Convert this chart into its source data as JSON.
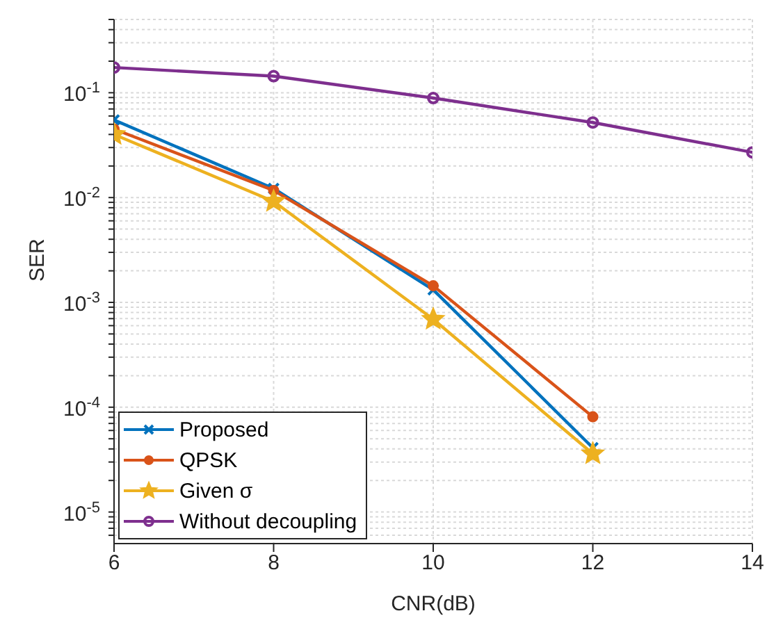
{
  "chart_data": {
    "type": "line",
    "xlabel": "CNR(dB)",
    "ylabel": "SER",
    "log": "y",
    "grid": true,
    "legend": "bottom left",
    "x": [
      6,
      8,
      10,
      12,
      14
    ],
    "series": [
      {
        "name": "Proposed",
        "color": "#0072bd",
        "marker": "cross",
        "values": [
          0.055,
          0.0122,
          0.00132,
          4.1e-05,
          null
        ]
      },
      {
        "name": "QPSK",
        "color": "#d95319",
        "marker": "circle",
        "values": [
          0.045,
          0.0117,
          0.00144,
          8.1e-05,
          null
        ]
      },
      {
        "name": "Given σ",
        "color": "#edb120",
        "marker": "star",
        "values": [
          0.04,
          0.0092,
          0.00069,
          3.6e-05,
          null
        ]
      },
      {
        "name": "Without decoupling",
        "color": "#7e2f8e",
        "marker": "circle",
        "values": [
          0.174,
          0.144,
          0.089,
          0.052,
          0.027
        ]
      }
    ],
    "xlim": [
      6,
      14
    ],
    "xticks": [
      6,
      8,
      10,
      12,
      14
    ],
    "ylim": [
      5e-06,
      0.5
    ],
    "yticks": [
      {
        "value": 6e-06,
        "label": null
      },
      {
        "value": 7e-06,
        "label": null
      },
      {
        "value": 8e-06,
        "label": null
      },
      {
        "value": 9e-06,
        "label": null
      },
      {
        "value": 1e-05,
        "label": "10$^{-5}$"
      },
      {
        "value": 2e-05,
        "label": null
      },
      {
        "value": 3e-05,
        "label": null
      },
      {
        "value": 4e-05,
        "label": null
      },
      {
        "value": 5e-05,
        "label": null
      },
      {
        "value": 6e-05,
        "label": null
      },
      {
        "value": 7e-05,
        "label": null
      },
      {
        "value": 8e-05,
        "label": null
      },
      {
        "value": 9e-05,
        "label": null
      },
      {
        "value": 0.0001,
        "label": "10$^{-4}$"
      },
      {
        "value": 0.0002,
        "label": null
      },
      {
        "value": 0.0003,
        "label": null
      },
      {
        "value": 0.0004,
        "label": null
      },
      {
        "value": 0.0005,
        "label": null
      },
      {
        "value": 0.0006,
        "label": null
      },
      {
        "value": 0.0007,
        "label": null
      },
      {
        "value": 0.0008,
        "label": null
      },
      {
        "value": 0.0009,
        "label": null
      },
      {
        "value": 0.001,
        "label": "10$^{-3}$"
      },
      {
        "value": 0.002,
        "label": null
      },
      {
        "value": 0.003,
        "label": null
      },
      {
        "value": 0.004,
        "label": null
      },
      {
        "value": 0.005,
        "label": null
      },
      {
        "value": 0.006,
        "label": null
      },
      {
        "value": 0.007,
        "label": null
      },
      {
        "value": 0.008,
        "label": null
      },
      {
        "value": 0.009,
        "label": null
      },
      {
        "value": 0.01,
        "label": "10$^{-2}$"
      },
      {
        "value": 0.02,
        "label": null
      },
      {
        "value": 0.03,
        "label": null
      },
      {
        "value": 0.04,
        "label": null
      },
      {
        "value": 0.05,
        "label": null
      },
      {
        "value": 0.06,
        "label": null
      },
      {
        "value": 0.07,
        "label": null
      },
      {
        "value": 0.08,
        "label": null
      },
      {
        "value": 0.09,
        "label": null
      },
      {
        "value": 0.1,
        "label": "10$^{-1}$"
      },
      {
        "value": 0.2,
        "label": null
      },
      {
        "value": 0.3,
        "label": null
      },
      {
        "value": 0.4,
        "label": null
      },
      {
        "value": 0.5,
        "label": null
      }
    ]
  }
}
